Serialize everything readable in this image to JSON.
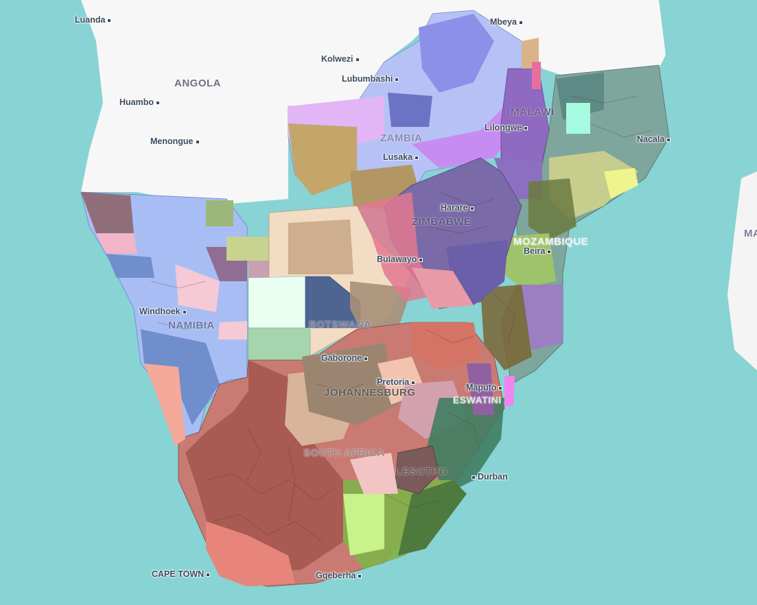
{
  "map": {
    "countries": [
      {
        "id": "angola",
        "label": "ANGOLA"
      },
      {
        "id": "zambia",
        "label": "ZAMBIA"
      },
      {
        "id": "malawi",
        "label": "MALAWI"
      },
      {
        "id": "zimbabwe",
        "label": "ZIMBABWE"
      },
      {
        "id": "mozambique",
        "label": "MOZAMBIQUE"
      },
      {
        "id": "namibia",
        "label": "NAMIBIA"
      },
      {
        "id": "botswana",
        "label": "BOTSWANA"
      },
      {
        "id": "johannesburg",
        "label": "JOHANNESBURG"
      },
      {
        "id": "eswatini",
        "label": "ESWATINI"
      },
      {
        "id": "south-africa",
        "label": "SOUTH AFRICA"
      },
      {
        "id": "lesotho",
        "label": "LESOTHO"
      },
      {
        "id": "madagascar-partial",
        "label": "MA"
      }
    ],
    "cities": [
      {
        "id": "luanda",
        "label": "Luanda"
      },
      {
        "id": "huambo",
        "label": "Huambo"
      },
      {
        "id": "menongue",
        "label": "Menongue"
      },
      {
        "id": "kolwezi",
        "label": "Kolwezi"
      },
      {
        "id": "lubumbashi",
        "label": "Lubumbashi"
      },
      {
        "id": "mbeya",
        "label": "Mbeya"
      },
      {
        "id": "lusaka",
        "label": "Lusaka"
      },
      {
        "id": "lilongwe",
        "label": "Lilongwe"
      },
      {
        "id": "nacala",
        "label": "Nacala"
      },
      {
        "id": "harare",
        "label": "Harare"
      },
      {
        "id": "bulawayo",
        "label": "Bulawayo"
      },
      {
        "id": "beira",
        "label": "Beira"
      },
      {
        "id": "windhoek",
        "label": "Windhoek"
      },
      {
        "id": "gaborone",
        "label": "Gaborone"
      },
      {
        "id": "pretoria",
        "label": "Pretoria"
      },
      {
        "id": "maputo",
        "label": "Maputo"
      },
      {
        "id": "durban",
        "label": "Durban"
      },
      {
        "id": "cape-town",
        "label": "CAPE TOWN"
      },
      {
        "id": "gqeberha",
        "label": "Gqeberha"
      }
    ],
    "colors": {
      "ocean": "#7fcfcf",
      "land_unshaded": "#f7f7f7"
    }
  }
}
